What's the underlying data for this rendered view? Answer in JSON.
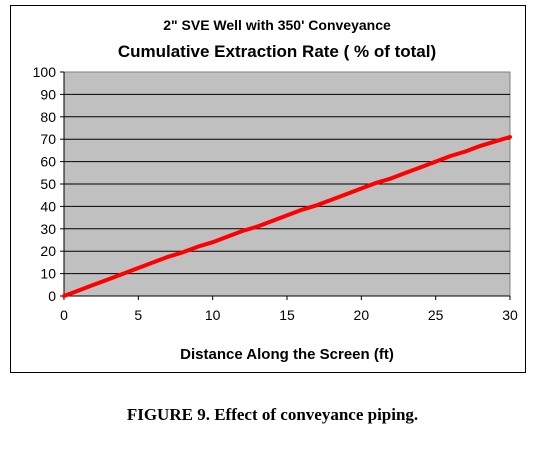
{
  "chart_data": {
    "type": "line",
    "title": "2\" SVE Well with 350' Conveyance",
    "subtitle": "Cumulative Extraction Rate ( % of total)",
    "xlabel": "Distance Along the Screen (ft)",
    "ylabel": "",
    "xlim": [
      0,
      30
    ],
    "ylim": [
      0,
      100
    ],
    "x_ticks": [
      "0",
      "5",
      "10",
      "15",
      "20",
      "25",
      "30"
    ],
    "y_ticks": [
      "0",
      "10",
      "20",
      "30",
      "40",
      "50",
      "60",
      "70",
      "80",
      "90",
      "100"
    ],
    "grid": true,
    "legend": "none",
    "plot_background": "#c0c0c0",
    "line_color": "#ff0000",
    "series": [
      {
        "x": [
          0,
          1,
          2,
          3,
          4,
          5,
          6,
          7,
          8,
          9,
          10,
          11,
          12,
          13,
          14,
          15,
          16,
          17,
          18,
          19,
          20,
          21,
          22,
          23,
          24,
          25,
          26,
          27,
          28,
          29,
          30
        ],
        "values": [
          0,
          2.5,
          5,
          7.5,
          10,
          12.5,
          15,
          17.5,
          19.5,
          22,
          24,
          26.5,
          29,
          31,
          33.5,
          36,
          38.5,
          40.5,
          43,
          45.5,
          48,
          50.5,
          52.5,
          55,
          57.5,
          60,
          62.5,
          64.5,
          67,
          69,
          71
        ]
      }
    ]
  },
  "figure_caption": "FIGURE 9. Effect of conveyance piping."
}
